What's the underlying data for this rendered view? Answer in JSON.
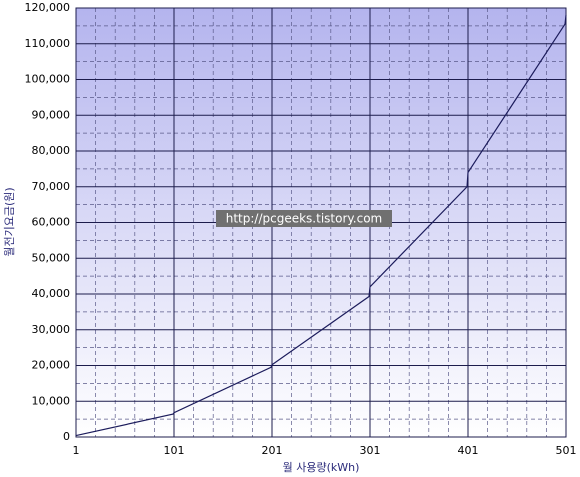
{
  "chart_data": {
    "type": "line",
    "ylabel": "월전기요금(원)",
    "xlabel": "월 사용량(kWh)",
    "watermark": "http://pcgeeks.tistory.com",
    "x": [
      1,
      100,
      101,
      200,
      201,
      300,
      301,
      400,
      401,
      500,
      501
    ],
    "values": [
      400,
      6400,
      6800,
      19500,
      20200,
      39300,
      42000,
      70000,
      74000,
      115500,
      118000
    ],
    "color": "#1c1c5c",
    "xlim": [
      1,
      501
    ],
    "xticks": [
      1,
      101,
      201,
      301,
      401,
      501
    ],
    "ylim": [
      0,
      120000
    ],
    "yticks": [
      0,
      {
        "value": 10000,
        "label": "10,000"
      },
      {
        "value": 20000,
        "label": "20,000"
      },
      {
        "value": 30000,
        "label": "30,000"
      },
      {
        "value": 40000,
        "label": "40,000"
      },
      {
        "value": 50000,
        "label": "50,000"
      },
      {
        "value": 60000,
        "label": "60,000"
      },
      {
        "value": 70000,
        "label": "70,000"
      },
      {
        "value": 80000,
        "label": "80,000"
      },
      {
        "value": 90000,
        "label": "90,000"
      },
      {
        "value": 100000,
        "label": "100,000"
      },
      {
        "value": 110000,
        "label": "110,000"
      },
      {
        "value": 120000,
        "label": "120,000"
      }
    ],
    "grid": true
  }
}
